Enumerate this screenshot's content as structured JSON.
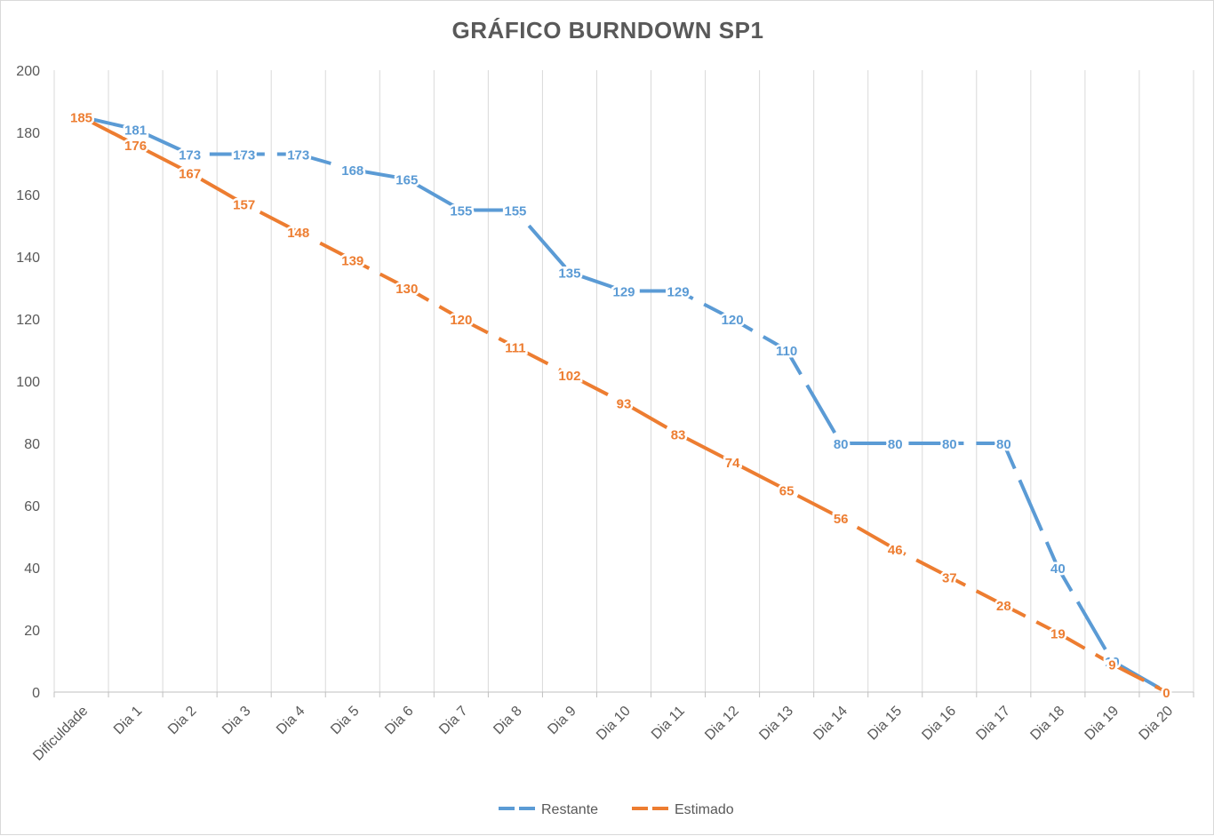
{
  "chart_data": {
    "type": "line",
    "title": "GRÁFICO BURNDOWN SP1",
    "xlabel": "",
    "ylabel": "",
    "categories": [
      "Dificuldade",
      "Dia 1",
      "Dia 2",
      "Dia 3",
      "Dia 4",
      "Dia 5",
      "Dia 6",
      "Dia 7",
      "Dia 8",
      "Dia 9",
      "Dia 10",
      "Dia 11",
      "Dia 12",
      "Dia 13",
      "Dia 14",
      "Dia 15",
      "Dia 16",
      "Dia 17",
      "Dia 18",
      "Dia 19",
      "Dia 20"
    ],
    "ylim": [
      0,
      200
    ],
    "yticks": [
      0,
      20,
      40,
      60,
      80,
      100,
      120,
      140,
      160,
      180,
      200
    ],
    "grid": "vertical",
    "legend_position": "bottom",
    "series": [
      {
        "name": "Restante",
        "color": "#5b9bd5",
        "line_style": "dashed",
        "values": [
          185,
          181,
          173,
          173,
          173,
          168,
          165,
          155,
          155,
          135,
          129,
          129,
          120,
          110,
          80,
          80,
          80,
          80,
          40,
          10,
          0
        ]
      },
      {
        "name": "Estimado",
        "color": "#ed7d31",
        "line_style": "dashed",
        "values": [
          185,
          176,
          167,
          157,
          148,
          139,
          130,
          120,
          111,
          102,
          93,
          83,
          74,
          65,
          56,
          46,
          37,
          28,
          19,
          9,
          0
        ]
      }
    ]
  }
}
